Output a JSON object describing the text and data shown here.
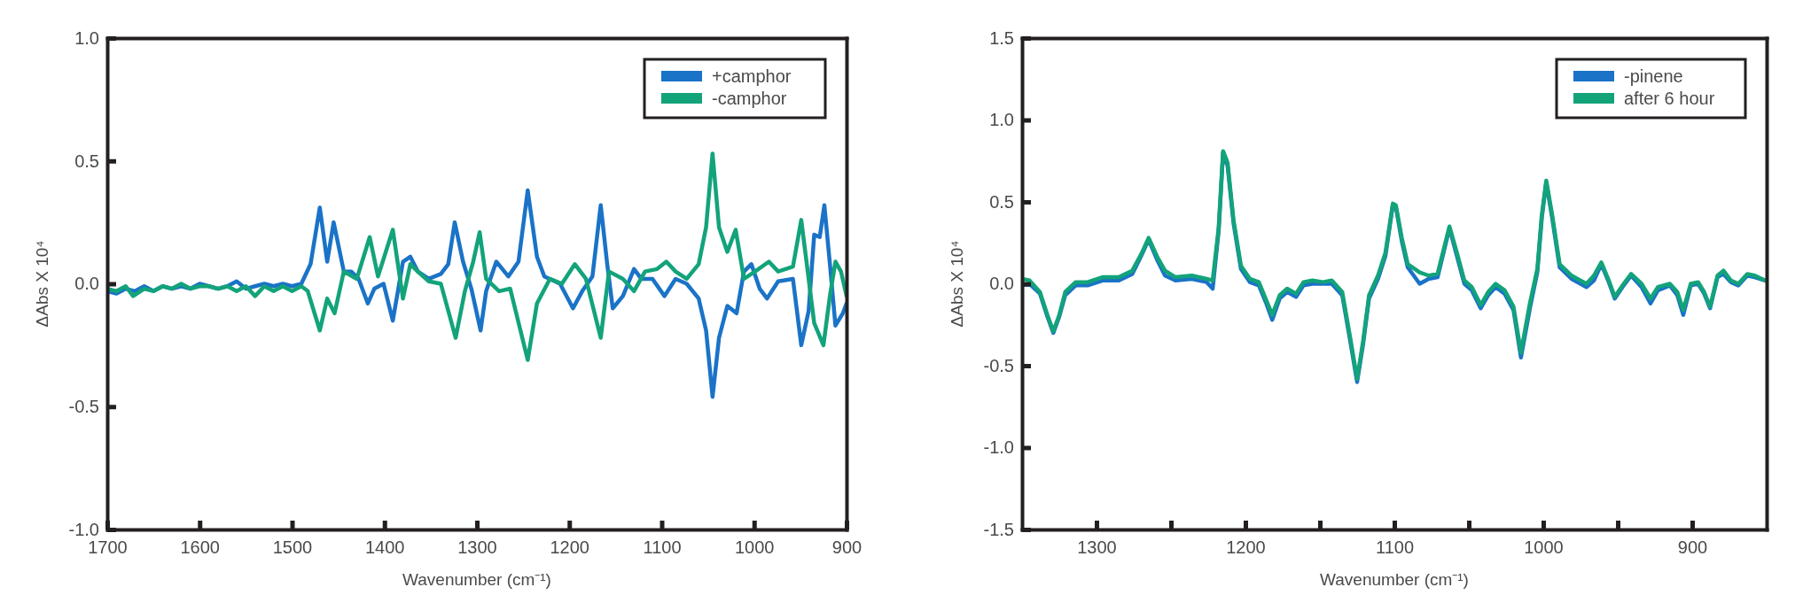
{
  "chart_data": [
    {
      "type": "line",
      "xlabel": "Wavenumber (cm⁻¹)",
      "ylabel": "ΔAbs X 10⁴",
      "xlim": [
        1700,
        900
      ],
      "ylim": [
        -1,
        1
      ],
      "xticks": [
        1700,
        1600,
        1500,
        1400,
        1300,
        1200,
        1100,
        1000,
        900
      ],
      "yticks": [
        {
          "value": -1,
          "label": "-1.0"
        },
        {
          "value": -0.5,
          "label": "-0.5"
        },
        {
          "value": 0,
          "label": "0.0"
        },
        {
          "value": 0.5,
          "label": "0.5"
        },
        {
          "value": 1,
          "label": "1.0"
        }
      ],
      "legend": "top right",
      "series": [
        {
          "name": "+camphor",
          "color": "#1a73c7",
          "x": [
            1700,
            1690,
            1680,
            1670,
            1660,
            1650,
            1640,
            1630,
            1620,
            1610,
            1600,
            1590,
            1580,
            1570,
            1560,
            1550,
            1540,
            1530,
            1520,
            1510,
            1500,
            1490,
            1480,
            1470,
            1462,
            1455,
            1444,
            1436,
            1428,
            1418,
            1411,
            1401,
            1391,
            1380,
            1372,
            1364,
            1352,
            1339,
            1331,
            1324,
            1315,
            1306,
            1296,
            1290,
            1279,
            1266,
            1255,
            1245,
            1235,
            1227,
            1210,
            1196,
            1186,
            1175,
            1166,
            1159,
            1153,
            1142,
            1130,
            1122,
            1110,
            1097,
            1085,
            1073,
            1060,
            1052,
            1045,
            1038,
            1029,
            1019,
            1011,
            1003,
            994,
            986,
            974,
            958,
            949,
            941,
            935,
            929,
            924,
            918,
            912,
            904,
            900
          ],
          "values": [
            -0.03,
            -0.04,
            -0.02,
            -0.03,
            -0.01,
            -0.03,
            -0.01,
            -0.02,
            -0.01,
            -0.02,
            0,
            -0.01,
            -0.02,
            -0.01,
            0.01,
            -0.02,
            -0.01,
            0,
            -0.01,
            0,
            -0.01,
            0,
            0.08,
            0.31,
            0.09,
            0.25,
            0.05,
            0.05,
            0.02,
            -0.08,
            -0.02,
            0,
            -0.15,
            0.09,
            0.11,
            0.05,
            0.02,
            0.04,
            0.08,
            0.25,
            0.09,
            -0.02,
            -0.19,
            -0.03,
            0.09,
            0.03,
            0.09,
            0.38,
            0.11,
            0.03,
            0,
            -0.1,
            -0.03,
            0.03,
            0.32,
            0.08,
            -0.1,
            -0.05,
            0.06,
            0.02,
            0.02,
            -0.05,
            0.02,
            0,
            -0.06,
            -0.19,
            -0.46,
            -0.22,
            -0.09,
            -0.12,
            0.05,
            0.08,
            -0.02,
            -0.06,
            0.01,
            0.02,
            -0.25,
            -0.11,
            0.2,
            0.19,
            0.32,
            0.08,
            -0.17,
            -0.12,
            -0.08
          ]
        },
        {
          "name": "-camphor",
          "color": "#13a37a",
          "x": [
            1700,
            1690,
            1680,
            1672,
            1660,
            1650,
            1640,
            1630,
            1620,
            1610,
            1600,
            1590,
            1580,
            1570,
            1560,
            1550,
            1540,
            1530,
            1520,
            1510,
            1500,
            1490,
            1483,
            1470,
            1462,
            1454,
            1444,
            1430,
            1416,
            1407,
            1391,
            1380,
            1372,
            1364,
            1352,
            1339,
            1323,
            1313,
            1304,
            1297,
            1290,
            1276,
            1264,
            1245,
            1235,
            1221,
            1208,
            1194,
            1182,
            1166,
            1157,
            1142,
            1130,
            1118,
            1105,
            1095,
            1085,
            1073,
            1060,
            1052,
            1045,
            1038,
            1029,
            1020,
            1011,
            999,
            984,
            974,
            958,
            949,
            942,
            935,
            925,
            918,
            912,
            906,
            900
          ],
          "values": [
            -0.02,
            -0.03,
            -0.01,
            -0.05,
            -0.02,
            -0.03,
            -0.01,
            -0.02,
            0,
            -0.02,
            -0.01,
            -0.01,
            -0.02,
            -0.01,
            -0.03,
            -0.01,
            -0.05,
            -0.01,
            -0.03,
            -0.01,
            -0.03,
            -0.01,
            -0.03,
            -0.19,
            -0.06,
            -0.12,
            0.05,
            0.02,
            0.19,
            0.03,
            0.22,
            -0.06,
            0.08,
            0.05,
            0.01,
            0,
            -0.22,
            -0.03,
            0.09,
            0.21,
            0.02,
            -0.03,
            -0.02,
            -0.31,
            -0.08,
            0.02,
            0,
            0.08,
            0.02,
            -0.22,
            0.05,
            0.02,
            -0.03,
            0.05,
            0.06,
            0.09,
            0.05,
            0.02,
            0.08,
            0.23,
            0.53,
            0.23,
            0.13,
            0.22,
            0.02,
            0.05,
            0.09,
            0.05,
            0.07,
            0.26,
            0.05,
            -0.16,
            -0.25,
            -0.05,
            0.09,
            0.05,
            -0.05
          ]
        }
      ]
    },
    {
      "type": "line",
      "xlabel": "Wavenumber (cm⁻¹)",
      "ylabel": "ΔAbs X 10⁴",
      "xlim": [
        1350,
        850
      ],
      "ylim": [
        -1.5,
        1.5
      ],
      "xticks": [
        1300,
        {
          "value": 1250,
          "label": null
        },
        1200,
        {
          "value": 1150,
          "label": null
        },
        1100,
        {
          "value": 1050,
          "label": null
        },
        1000,
        {
          "value": 950,
          "label": null
        },
        900
      ],
      "yticks": [
        {
          "value": -1.5,
          "label": "-1.5"
        },
        {
          "value": -1,
          "label": "-1.0"
        },
        {
          "value": -0.5,
          "label": "-0.5"
        },
        {
          "value": 0,
          "label": "0.0"
        },
        {
          "value": 0.5,
          "label": "0.5"
        },
        {
          "value": 1,
          "label": "1.0"
        },
        {
          "value": 1.5,
          "label": "1.5"
        }
      ],
      "legend": "top right",
      "series": [
        {
          "name": "-pinene",
          "color": "#1a73c7",
          "x": [
            1350,
            1345,
            1338,
            1333,
            1329,
            1325,
            1321,
            1314,
            1306,
            1296,
            1285,
            1276,
            1270,
            1265,
            1259,
            1254,
            1247,
            1236,
            1226,
            1222,
            1218,
            1215,
            1212,
            1208,
            1203,
            1197,
            1191,
            1186,
            1182,
            1177,
            1172,
            1166,
            1161,
            1155,
            1148,
            1142,
            1135,
            1130,
            1125,
            1121,
            1117,
            1111,
            1106,
            1101,
            1099,
            1095,
            1091,
            1083,
            1077,
            1071,
            1063,
            1058,
            1053,
            1048,
            1042,
            1037,
            1032,
            1026,
            1020,
            1015,
            1009,
            1004,
            1001,
            998,
            994,
            989,
            981,
            971,
            966,
            961,
            956,
            952,
            946,
            941,
            934,
            928,
            923,
            915,
            910,
            906,
            901,
            896,
            892,
            888,
            883,
            879,
            874,
            869,
            863,
            858,
            851
          ],
          "values": [
            -0.01,
            0,
            -0.06,
            -0.2,
            -0.3,
            -0.2,
            -0.07,
            -0.01,
            -0.01,
            0.02,
            0.02,
            0.06,
            0.17,
            0.27,
            0.14,
            0.05,
            0.02,
            0.03,
            0.01,
            -0.03,
            0.32,
            0.8,
            0.72,
            0.37,
            0.09,
            0.01,
            -0.01,
            -0.12,
            -0.22,
            -0.09,
            -0.05,
            -0.08,
            -0.01,
            0,
            0,
            0,
            -0.07,
            -0.33,
            -0.6,
            -0.37,
            -0.09,
            0.03,
            0.17,
            0.48,
            0.47,
            0.26,
            0.1,
            0,
            0.03,
            0.04,
            0.34,
            0.17,
            0,
            -0.04,
            -0.15,
            -0.07,
            -0.02,
            -0.06,
            -0.16,
            -0.45,
            -0.15,
            0.07,
            0.4,
            0.62,
            0.4,
            0.1,
            0.03,
            -0.02,
            0.02,
            0.12,
            0.01,
            -0.09,
            -0.01,
            0.05,
            -0.02,
            -0.12,
            -0.04,
            -0.01,
            -0.07,
            -0.19,
            -0.01,
            0,
            -0.06,
            -0.15,
            0.04,
            0.06,
            0.01,
            -0.01,
            0.05,
            0.04,
            0.02
          ]
        },
        {
          "name": "after 6 hour",
          "color": "#13a37a",
          "x": [
            1350,
            1345,
            1338,
            1333,
            1329,
            1325,
            1321,
            1314,
            1306,
            1296,
            1285,
            1276,
            1270,
            1265,
            1259,
            1254,
            1247,
            1236,
            1226,
            1222,
            1218,
            1215,
            1212,
            1208,
            1203,
            1197,
            1191,
            1186,
            1182,
            1177,
            1172,
            1166,
            1161,
            1155,
            1148,
            1142,
            1135,
            1130,
            1125,
            1121,
            1117,
            1111,
            1106,
            1101,
            1099,
            1095,
            1091,
            1083,
            1077,
            1071,
            1063,
            1058,
            1053,
            1048,
            1042,
            1037,
            1032,
            1026,
            1020,
            1015,
            1009,
            1004,
            1001,
            998,
            994,
            989,
            981,
            971,
            966,
            961,
            956,
            952,
            946,
            941,
            934,
            928,
            923,
            915,
            910,
            906,
            901,
            896,
            892,
            888,
            883,
            879,
            874,
            869,
            863,
            858,
            851
          ],
          "values": [
            0.03,
            0.02,
            -0.05,
            -0.19,
            -0.29,
            -0.19,
            -0.05,
            0.01,
            0.01,
            0.04,
            0.04,
            0.08,
            0.18,
            0.28,
            0.16,
            0.08,
            0.04,
            0.05,
            0.03,
            0.02,
            0.34,
            0.81,
            0.74,
            0.39,
            0.11,
            0.03,
            0.01,
            -0.1,
            -0.19,
            -0.07,
            -0.03,
            -0.06,
            0.01,
            0.02,
            0.01,
            0.02,
            -0.05,
            -0.31,
            -0.58,
            -0.35,
            -0.07,
            0.05,
            0.19,
            0.49,
            0.48,
            0.28,
            0.12,
            0.07,
            0.05,
            0.06,
            0.35,
            0.19,
            0.02,
            -0.02,
            -0.13,
            -0.05,
            0,
            -0.04,
            -0.14,
            -0.42,
            -0.12,
            0.09,
            0.42,
            0.63,
            0.42,
            0.12,
            0.05,
            0,
            0.05,
            0.13,
            0.02,
            -0.08,
            0,
            0.06,
            0,
            -0.09,
            -0.02,
            0,
            -0.05,
            -0.16,
            0,
            0.01,
            -0.05,
            -0.14,
            0.05,
            0.08,
            0.02,
            0,
            0.06,
            0.05,
            0.02
          ]
        }
      ]
    }
  ]
}
